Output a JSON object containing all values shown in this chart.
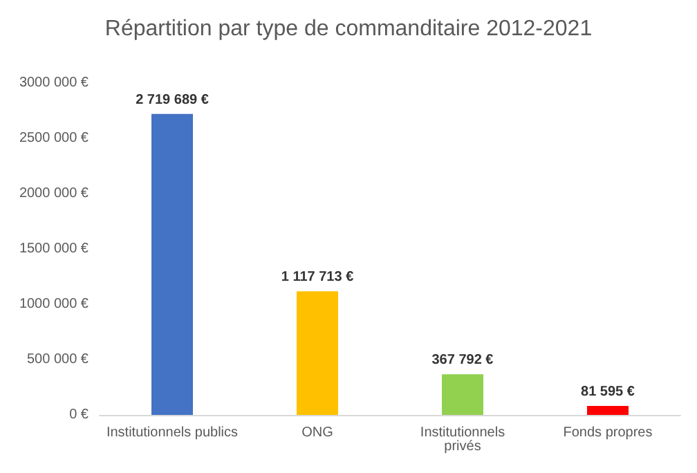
{
  "chart_data": {
    "type": "bar",
    "title": "Répartition par type de commanditaire 2012-2021",
    "categories": [
      "Institutionnels publics",
      "ONG",
      "Institutionnels privés",
      "Fonds propres"
    ],
    "values": [
      2719689,
      1117713,
      367792,
      81595
    ],
    "colors": [
      "#4472c4",
      "#ffc000",
      "#92d050",
      "#ff0000"
    ],
    "value_labels": [
      "2 719 689 €",
      "1 117 713 €",
      "367 792 €",
      "81 595 €"
    ],
    "ylim": [
      0,
      3000000
    ],
    "yticks": [
      {
        "value": 0,
        "label": "0 €"
      },
      {
        "value": 500000,
        "label": "500 000 €"
      },
      {
        "value": 1000000,
        "label": "1000 000 €"
      },
      {
        "value": 1500000,
        "label": "1500 000 €"
      },
      {
        "value": 2000000,
        "label": "2000 000 €"
      },
      {
        "value": 2500000,
        "label": "2500 000 €"
      },
      {
        "value": 3000000,
        "label": "3000 000 €"
      }
    ],
    "grid": false
  }
}
